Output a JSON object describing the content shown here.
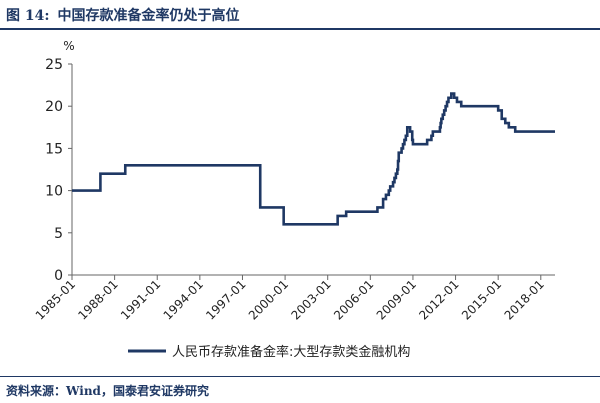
{
  "figure": {
    "label": "图 14:",
    "caption": "中国存款准备金率仍处于高位",
    "source": "资料来源：Wind，国泰君安证券研究"
  },
  "chart_data": {
    "type": "line",
    "title": "",
    "xlabel": "",
    "ylabel": "%",
    "y_unit": "%",
    "ylim": [
      0,
      25
    ],
    "y_ticks": [
      0,
      5,
      10,
      15,
      20,
      25
    ],
    "x_range": [
      1985.0,
      2019.0
    ],
    "x_tick_labels": [
      "1985-01",
      "1988-01",
      "1991-01",
      "1994-01",
      "1997-01",
      "2000-01",
      "2003-01",
      "2006-01",
      "2009-01",
      "2012-01",
      "2015-01",
      "2018-01"
    ],
    "grid": false,
    "legend_position": "bottom",
    "colors": {
      "series": "#1f3864",
      "axis": "#666666"
    },
    "series": [
      {
        "name": "人民币存款准备金率:大型存款类金融机构",
        "step": true,
        "points": [
          [
            1985.0,
            10
          ],
          [
            1987.0,
            12
          ],
          [
            1988.75,
            13
          ],
          [
            1998.25,
            8
          ],
          [
            1999.9,
            6
          ],
          [
            2003.7,
            7
          ],
          [
            2004.3,
            7.5
          ],
          [
            2006.5,
            8
          ],
          [
            2006.9,
            9
          ],
          [
            2007.1,
            9.5
          ],
          [
            2007.3,
            10
          ],
          [
            2007.4,
            10.5
          ],
          [
            2007.6,
            11
          ],
          [
            2007.7,
            11.5
          ],
          [
            2007.8,
            12
          ],
          [
            2007.9,
            12.5
          ],
          [
            2007.95,
            13.5
          ],
          [
            2008.0,
            14.5
          ],
          [
            2008.2,
            15
          ],
          [
            2008.3,
            15.5
          ],
          [
            2008.4,
            16
          ],
          [
            2008.5,
            16.5
          ],
          [
            2008.6,
            17.5
          ],
          [
            2008.8,
            17
          ],
          [
            2008.95,
            16
          ],
          [
            2009.0,
            15.5
          ],
          [
            2010.0,
            16
          ],
          [
            2010.3,
            16.5
          ],
          [
            2010.4,
            17
          ],
          [
            2010.9,
            17.5
          ],
          [
            2010.95,
            18
          ],
          [
            2011.0,
            18.5
          ],
          [
            2011.1,
            19
          ],
          [
            2011.2,
            19.5
          ],
          [
            2011.3,
            20
          ],
          [
            2011.4,
            20.5
          ],
          [
            2011.5,
            21
          ],
          [
            2011.7,
            21.5
          ],
          [
            2011.9,
            21
          ],
          [
            2012.1,
            20.5
          ],
          [
            2012.4,
            20
          ],
          [
            2015.0,
            19.5
          ],
          [
            2015.25,
            18.5
          ],
          [
            2015.5,
            18
          ],
          [
            2015.75,
            17.5
          ],
          [
            2016.2,
            17
          ],
          [
            2018.3,
            17
          ],
          [
            2019.0,
            17
          ]
        ]
      }
    ]
  }
}
